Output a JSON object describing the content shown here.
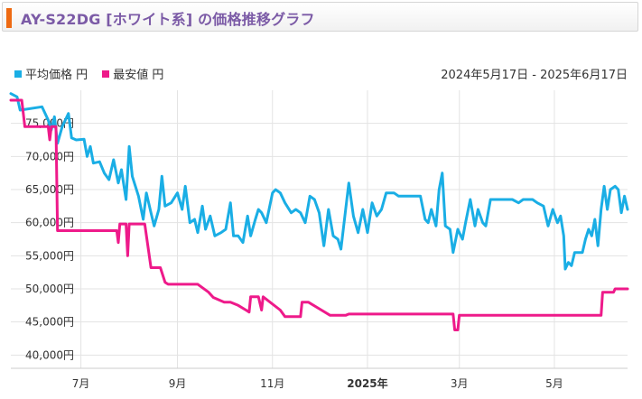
{
  "header": {
    "title": "AY-S22DG [ホワイト系] の価格推移グラフ"
  },
  "colors": {
    "avg": "#1aaee5",
    "min": "#ee1a8a",
    "accent": "#ee6a12",
    "title": "#7b5aa6"
  },
  "chart_data": {
    "type": "line",
    "date_range": "2024年5月17日 - 2025年6月17日",
    "ylim": [
      38000,
      80000
    ],
    "y_ticks": [
      {
        "value": 40000,
        "label": "40,000円"
      },
      {
        "value": 45000,
        "label": "45,000円"
      },
      {
        "value": 50000,
        "label": "50,000円"
      },
      {
        "value": 55000,
        "label": "55,000円"
      },
      {
        "value": 60000,
        "label": "60,000円"
      },
      {
        "value": 65000,
        "label": "65,000円"
      },
      {
        "value": 70000,
        "label": "70,000円"
      },
      {
        "value": 75000,
        "label": "75,000円"
      }
    ],
    "x_ticks": [
      {
        "date": "2024-07-01",
        "label": "7月",
        "bold": false
      },
      {
        "date": "2024-09-01",
        "label": "9月",
        "bold": false
      },
      {
        "date": "2024-11-01",
        "label": "11月",
        "bold": false
      },
      {
        "date": "2025-01-01",
        "label": "2025年",
        "bold": true
      },
      {
        "date": "2025-03-01",
        "label": "3月",
        "bold": false
      },
      {
        "date": "2025-05-01",
        "label": "5月",
        "bold": false
      }
    ],
    "grid": true,
    "legend": "top-left",
    "series": [
      {
        "name": "平均価格 円",
        "color": "#1aaee5",
        "points": [
          [
            "2024-05-17",
            79500
          ],
          [
            "2024-05-21",
            79000
          ],
          [
            "2024-05-23",
            77000
          ],
          [
            "2024-06-06",
            77500
          ],
          [
            "2024-06-10",
            75500
          ],
          [
            "2024-06-12",
            74000
          ],
          [
            "2024-06-14",
            76000
          ],
          [
            "2024-06-16",
            72000
          ],
          [
            "2024-06-19",
            74500
          ],
          [
            "2024-06-23",
            76500
          ],
          [
            "2024-06-25",
            72800
          ],
          [
            "2024-06-28",
            72500
          ],
          [
            "2024-07-03",
            72600
          ],
          [
            "2024-07-05",
            70000
          ],
          [
            "2024-07-07",
            71500
          ],
          [
            "2024-07-09",
            69000
          ],
          [
            "2024-07-13",
            69200
          ],
          [
            "2024-07-16",
            67500
          ],
          [
            "2024-07-19",
            66500
          ],
          [
            "2024-07-22",
            69500
          ],
          [
            "2024-07-25",
            66000
          ],
          [
            "2024-07-27",
            68000
          ],
          [
            "2024-07-30",
            63500
          ],
          [
            "2024-08-01",
            71500
          ],
          [
            "2024-08-03",
            67000
          ],
          [
            "2024-08-07",
            64000
          ],
          [
            "2024-08-10",
            60500
          ],
          [
            "2024-08-12",
            64500
          ],
          [
            "2024-08-15",
            61500
          ],
          [
            "2024-08-17",
            59500
          ],
          [
            "2024-08-20",
            62000
          ],
          [
            "2024-08-22",
            67000
          ],
          [
            "2024-08-24",
            62500
          ],
          [
            "2024-08-28",
            63000
          ],
          [
            "2024-09-01",
            64500
          ],
          [
            "2024-09-04",
            62000
          ],
          [
            "2024-09-06",
            65500
          ],
          [
            "2024-09-09",
            60000
          ],
          [
            "2024-09-12",
            60500
          ],
          [
            "2024-09-14",
            58500
          ],
          [
            "2024-09-17",
            62500
          ],
          [
            "2024-09-19",
            59000
          ],
          [
            "2024-09-22",
            61000
          ],
          [
            "2024-09-25",
            58000
          ],
          [
            "2024-09-29",
            58500
          ],
          [
            "2024-10-02",
            59000
          ],
          [
            "2024-10-05",
            63000
          ],
          [
            "2024-10-07",
            58000
          ],
          [
            "2024-10-10",
            58000
          ],
          [
            "2024-10-13",
            57000
          ],
          [
            "2024-10-16",
            61000
          ],
          [
            "2024-10-18",
            58000
          ],
          [
            "2024-10-21",
            60500
          ],
          [
            "2024-10-23",
            62000
          ],
          [
            "2024-10-25",
            61500
          ],
          [
            "2024-10-28",
            60000
          ],
          [
            "2024-11-01",
            64500
          ],
          [
            "2024-11-03",
            65000
          ],
          [
            "2024-11-06",
            64500
          ],
          [
            "2024-11-09",
            63000
          ],
          [
            "2024-11-13",
            61500
          ],
          [
            "2024-11-16",
            62000
          ],
          [
            "2024-11-19",
            61500
          ],
          [
            "2024-11-22",
            60000
          ],
          [
            "2024-11-25",
            64000
          ],
          [
            "2024-11-28",
            63500
          ],
          [
            "2024-12-01",
            61500
          ],
          [
            "2024-12-04",
            56500
          ],
          [
            "2024-12-07",
            62000
          ],
          [
            "2024-12-10",
            58000
          ],
          [
            "2024-12-13",
            57500
          ],
          [
            "2024-12-15",
            56000
          ],
          [
            "2024-12-18",
            62000
          ],
          [
            "2024-12-20",
            66000
          ],
          [
            "2024-12-23",
            61000
          ],
          [
            "2024-12-26",
            58500
          ],
          [
            "2024-12-29",
            62000
          ],
          [
            "2025-01-01",
            58500
          ],
          [
            "2025-01-04",
            63000
          ],
          [
            "2025-01-07",
            61000
          ],
          [
            "2025-01-10",
            62000
          ],
          [
            "2025-01-13",
            64500
          ],
          [
            "2025-01-18",
            64500
          ],
          [
            "2025-01-21",
            64000
          ],
          [
            "2025-01-30",
            64000
          ],
          [
            "2025-02-04",
            64000
          ],
          [
            "2025-02-07",
            60500
          ],
          [
            "2025-02-09",
            60000
          ],
          [
            "2025-02-11",
            62000
          ],
          [
            "2025-02-14",
            59500
          ],
          [
            "2025-02-16",
            65000
          ],
          [
            "2025-02-18",
            67500
          ],
          [
            "2025-02-20",
            59500
          ],
          [
            "2025-02-23",
            59000
          ],
          [
            "2025-02-25",
            55500
          ],
          [
            "2025-02-28",
            59000
          ],
          [
            "2025-03-03",
            57500
          ],
          [
            "2025-03-05",
            60000
          ],
          [
            "2025-03-08",
            63500
          ],
          [
            "2025-03-11",
            59500
          ],
          [
            "2025-03-13",
            62000
          ],
          [
            "2025-03-16",
            60000
          ],
          [
            "2025-03-18",
            59500
          ],
          [
            "2025-03-21",
            63500
          ],
          [
            "2025-04-04",
            63500
          ],
          [
            "2025-04-08",
            63000
          ],
          [
            "2025-04-11",
            63500
          ],
          [
            "2025-04-17",
            63500
          ],
          [
            "2025-04-20",
            63000
          ],
          [
            "2025-04-24",
            62500
          ],
          [
            "2025-04-27",
            59500
          ],
          [
            "2025-04-30",
            62000
          ],
          [
            "2025-05-03",
            60000
          ],
          [
            "2025-05-05",
            61000
          ],
          [
            "2025-05-07",
            58000
          ],
          [
            "2025-05-08",
            53000
          ],
          [
            "2025-05-10",
            54000
          ],
          [
            "2025-05-12",
            53500
          ],
          [
            "2025-05-14",
            55500
          ],
          [
            "2025-05-19",
            55500
          ],
          [
            "2025-05-21",
            57500
          ],
          [
            "2025-05-23",
            59000
          ],
          [
            "2025-05-25",
            58000
          ],
          [
            "2025-05-27",
            60500
          ],
          [
            "2025-05-29",
            56500
          ],
          [
            "2025-05-31",
            62000
          ],
          [
            "2025-06-02",
            65500
          ],
          [
            "2025-06-04",
            62000
          ],
          [
            "2025-06-06",
            65000
          ],
          [
            "2025-06-09",
            65500
          ],
          [
            "2025-06-11",
            65000
          ],
          [
            "2025-06-13",
            61500
          ],
          [
            "2025-06-15",
            64000
          ],
          [
            "2025-06-17",
            62000
          ]
        ]
      },
      {
        "name": "最安値 円",
        "color": "#ee1a8a",
        "points": [
          [
            "2024-05-17",
            78500
          ],
          [
            "2024-05-24",
            78500
          ],
          [
            "2024-05-26",
            74500
          ],
          [
            "2024-06-10",
            74500
          ],
          [
            "2024-06-11",
            72500
          ],
          [
            "2024-06-12",
            74500
          ],
          [
            "2024-06-15",
            74500
          ],
          [
            "2024-06-16",
            58800
          ],
          [
            "2024-07-24",
            58800
          ],
          [
            "2024-07-25",
            57000
          ],
          [
            "2024-07-26",
            59800
          ],
          [
            "2024-07-30",
            59800
          ],
          [
            "2024-07-31",
            55000
          ],
          [
            "2024-08-01",
            59800
          ],
          [
            "2024-08-11",
            59800
          ],
          [
            "2024-08-15",
            53200
          ],
          [
            "2024-08-21",
            53200
          ],
          [
            "2024-08-24",
            51000
          ],
          [
            "2024-08-26",
            50700
          ],
          [
            "2024-09-14",
            50700
          ],
          [
            "2024-09-21",
            49500
          ],
          [
            "2024-09-24",
            48700
          ],
          [
            "2024-10-01",
            48000
          ],
          [
            "2024-10-05",
            48000
          ],
          [
            "2024-10-10",
            47500
          ],
          [
            "2024-10-15",
            46800
          ],
          [
            "2024-10-17",
            46500
          ],
          [
            "2024-10-18",
            48800
          ],
          [
            "2024-10-23",
            48800
          ],
          [
            "2024-10-25",
            46800
          ],
          [
            "2024-10-26",
            48800
          ],
          [
            "2024-11-06",
            46800
          ],
          [
            "2024-11-09",
            45800
          ],
          [
            "2024-11-19",
            45800
          ],
          [
            "2024-11-20",
            48000
          ],
          [
            "2024-11-24",
            48000
          ],
          [
            "2024-12-01",
            47000
          ],
          [
            "2024-12-08",
            46000
          ],
          [
            "2024-12-18",
            46000
          ],
          [
            "2024-12-20",
            46200
          ],
          [
            "2025-02-25",
            46200
          ],
          [
            "2025-02-26",
            43800
          ],
          [
            "2025-02-28",
            43800
          ],
          [
            "2025-03-01",
            46000
          ],
          [
            "2025-05-31",
            46000
          ],
          [
            "2025-06-01",
            49500
          ],
          [
            "2025-06-08",
            49500
          ],
          [
            "2025-06-09",
            50000
          ],
          [
            "2025-06-17",
            50000
          ]
        ]
      }
    ]
  }
}
